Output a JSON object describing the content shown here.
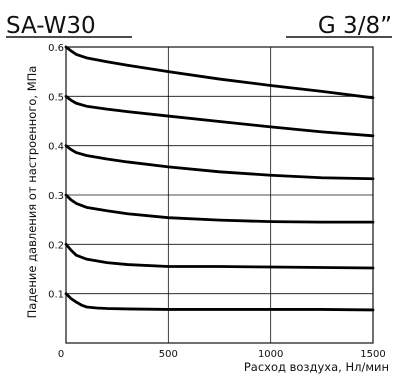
{
  "chart_data": {
    "type": "line",
    "title_left": "SA-W30",
    "title_right": "G 3/8”",
    "xlabel": "Расход воздуха, Нл/мин",
    "ylabel": "Падение давления от настроенного, МПа",
    "xlim": [
      0,
      1500
    ],
    "ylim": [
      0,
      0.6
    ],
    "grid": true,
    "x_ticks": [
      {
        "value": 0,
        "label": "0"
      },
      {
        "value": 500,
        "label": "500"
      },
      {
        "value": 1000,
        "label": "1000"
      },
      {
        "value": 1500,
        "label": "1500"
      }
    ],
    "y_ticks": [
      {
        "value": 0.1,
        "label": "0.1"
      },
      {
        "value": 0.2,
        "label": "0.2"
      },
      {
        "value": 0.3,
        "label": "0.3"
      },
      {
        "value": 0.4,
        "label": "0.4"
      },
      {
        "value": 0.5,
        "label": "0.5"
      },
      {
        "value": 0.6,
        "label": "0.6"
      }
    ],
    "series": [
      {
        "x": [
          0,
          25,
          50,
          100,
          200,
          300,
          500,
          750,
          1000,
          1250,
          1500
        ],
        "y": [
          0.6,
          0.592,
          0.585,
          0.578,
          0.57,
          0.563,
          0.55,
          0.535,
          0.522,
          0.51,
          0.497
        ]
      },
      {
        "x": [
          0,
          25,
          50,
          100,
          200,
          300,
          500,
          750,
          1000,
          1250,
          1500
        ],
        "y": [
          0.5,
          0.492,
          0.486,
          0.48,
          0.474,
          0.469,
          0.46,
          0.449,
          0.438,
          0.428,
          0.42
        ]
      },
      {
        "x": [
          0,
          25,
          50,
          100,
          200,
          300,
          500,
          750,
          1000,
          1250,
          1500
        ],
        "y": [
          0.4,
          0.392,
          0.386,
          0.38,
          0.373,
          0.367,
          0.357,
          0.347,
          0.34,
          0.335,
          0.333
        ]
      },
      {
        "x": [
          0,
          25,
          50,
          100,
          200,
          300,
          500,
          750,
          1000,
          1250,
          1500
        ],
        "y": [
          0.3,
          0.29,
          0.283,
          0.275,
          0.268,
          0.262,
          0.254,
          0.249,
          0.246,
          0.245,
          0.245
        ]
      },
      {
        "x": [
          0,
          25,
          50,
          100,
          200,
          300,
          500,
          750,
          1000,
          1250,
          1500
        ],
        "y": [
          0.2,
          0.188,
          0.178,
          0.17,
          0.163,
          0.159,
          0.155,
          0.155,
          0.154,
          0.153,
          0.152
        ]
      },
      {
        "x": [
          0,
          25,
          50,
          75,
          100,
          150,
          200,
          300,
          500,
          750,
          1000,
          1250,
          1500
        ],
        "y": [
          0.1,
          0.09,
          0.083,
          0.077,
          0.073,
          0.071,
          0.07,
          0.069,
          0.068,
          0.068,
          0.068,
          0.068,
          0.067
        ]
      }
    ]
  }
}
